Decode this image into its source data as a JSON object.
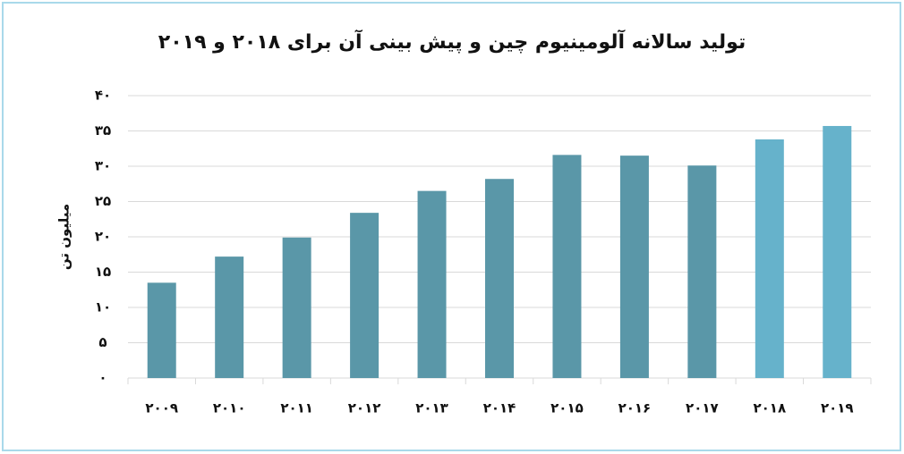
{
  "chart_data": {
    "type": "bar",
    "title": "تولید سالانه آلومینیوم چین و پیش بینی آن برای ۲۰۱۸ و ۲۰۱۹",
    "y_label": "میلیون تن",
    "categories": [
      "۲۰۰۹",
      "۲۰۱۰",
      "۲۰۱۱",
      "۲۰۱۲",
      "۲۰۱۳",
      "۲۰۱۴",
      "۲۰۱۵",
      "۲۰۱۶",
      "۲۰۱۷",
      "۲۰۱۸",
      "۲۰۱۹"
    ],
    "values": [
      13.5,
      17.2,
      19.9,
      23.4,
      26.5,
      28.2,
      31.6,
      31.5,
      30.1,
      33.8,
      35.7
    ],
    "colors": [
      "#5a97a8",
      "#5a97a8",
      "#5a97a8",
      "#5a97a8",
      "#5a97a8",
      "#5a97a8",
      "#5a97a8",
      "#5a97a8",
      "#5a97a8",
      "#66b2cb",
      "#66b2cb"
    ],
    "ylim": [
      0,
      40
    ],
    "yticks": [
      {
        "value": 0,
        "label": "۰"
      },
      {
        "value": 5,
        "label": "۵"
      },
      {
        "value": 10,
        "label": "۱۰"
      },
      {
        "value": 15,
        "label": "۱۵"
      },
      {
        "value": 20,
        "label": "۲۰"
      },
      {
        "value": 25,
        "label": "۲۵"
      },
      {
        "value": 30,
        "label": "۳۰"
      },
      {
        "value": 35,
        "label": "۳۵"
      },
      {
        "value": 40,
        "label": "۴۰"
      }
    ],
    "grid": true
  }
}
